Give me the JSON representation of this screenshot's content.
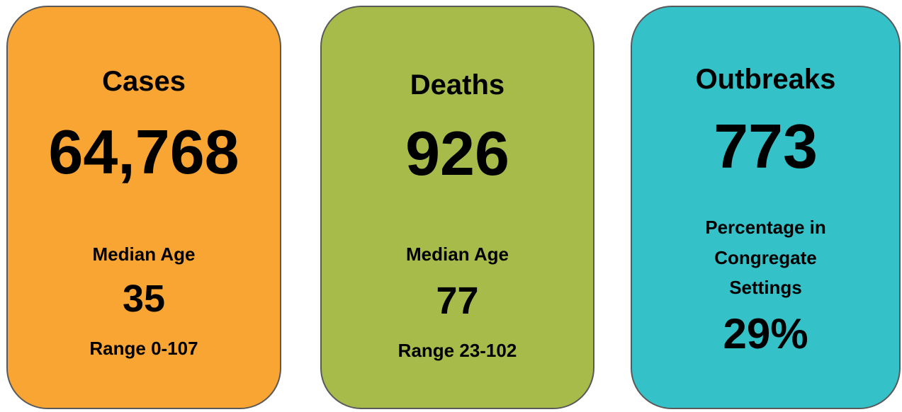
{
  "cards": [
    {
      "title": "Cases",
      "value": "64,768",
      "label": [
        "Median Age"
      ],
      "stat": "35",
      "range": "Range 0-107"
    },
    {
      "title": "Deaths",
      "value": "926",
      "label": [
        "Median Age"
      ],
      "stat": "77",
      "range": "Range 23-102"
    },
    {
      "title": "Outbreaks",
      "value": "773",
      "label": [
        "Percentage in",
        "Congregate",
        "Settings"
      ],
      "stat": "29%"
    }
  ]
}
